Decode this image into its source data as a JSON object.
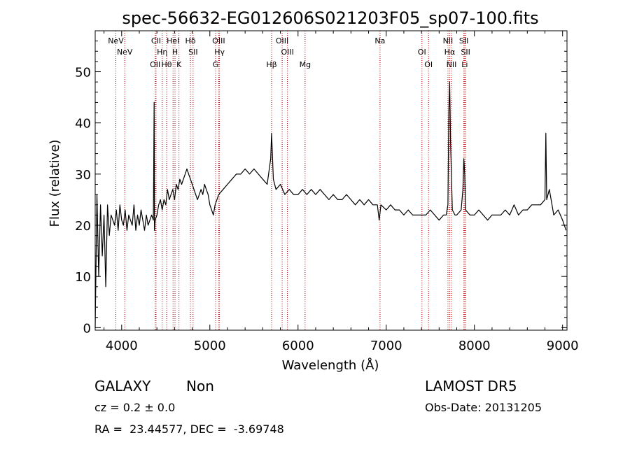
{
  "chart_data": {
    "type": "line",
    "title": "spec-56632-EG012606S021203F05_sp07-100.fits",
    "xlabel": "Wavelength (Å)",
    "ylabel": "Flux (relative)",
    "xlim": [
      3700,
      9050
    ],
    "ylim": [
      -0.5,
      58
    ],
    "xticks": [
      4000,
      5000,
      6000,
      7000,
      8000,
      9000
    ],
    "yticks": [
      0,
      10,
      20,
      30,
      40,
      50
    ],
    "grid": false,
    "series": [
      {
        "x": [
          3700,
          3720,
          3740,
          3760,
          3780,
          3800,
          3820,
          3840,
          3860,
          3880,
          3900,
          3920,
          3940,
          3960,
          3980,
          4000,
          4020,
          4040,
          4060,
          4080,
          4100,
          4120,
          4140,
          4160,
          4180,
          4200,
          4220,
          4240,
          4260,
          4280,
          4300,
          4320,
          4340,
          4360,
          4368,
          4372,
          4380,
          4400,
          4420,
          4440,
          4460,
          4480,
          4500,
          4520,
          4540,
          4560,
          4580,
          4600,
          4620,
          4640,
          4660,
          4680,
          4700,
          4720,
          4740,
          4760,
          4780,
          4800,
          4820,
          4840,
          4860,
          4880,
          4900,
          4920,
          4940,
          4960,
          4980,
          5000,
          5020,
          5040,
          5060,
          5080,
          5100,
          5150,
          5200,
          5250,
          5300,
          5350,
          5400,
          5450,
          5500,
          5550,
          5600,
          5650,
          5690,
          5700,
          5720,
          5750,
          5800,
          5850,
          5900,
          5950,
          6000,
          6050,
          6100,
          6150,
          6200,
          6250,
          6300,
          6350,
          6400,
          6450,
          6500,
          6550,
          6600,
          6650,
          6700,
          6750,
          6800,
          6850,
          6900,
          6920,
          6940,
          7000,
          7050,
          7100,
          7150,
          7200,
          7250,
          7300,
          7350,
          7400,
          7450,
          7500,
          7550,
          7600,
          7650,
          7680,
          7700,
          7710,
          7720,
          7730,
          7750,
          7780,
          7800,
          7850,
          7870,
          7880,
          7890,
          7900,
          7950,
          8000,
          8050,
          8100,
          8150,
          8200,
          8250,
          8300,
          8350,
          8400,
          8450,
          8500,
          8550,
          8600,
          8650,
          8700,
          8750,
          8800,
          8810,
          8820,
          8850,
          8900,
          8950,
          9000,
          9020,
          9040
        ],
        "y": [
          0,
          26,
          10,
          24,
          14,
          22,
          8,
          24,
          18,
          22,
          21,
          20,
          23,
          19,
          24,
          21,
          20,
          23,
          19,
          22,
          21,
          20,
          24,
          19,
          22,
          20,
          23,
          21,
          19,
          22,
          20,
          21,
          22,
          21,
          44,
          19,
          21,
          22,
          24,
          25,
          23,
          25,
          24,
          27,
          25,
          26,
          27,
          25,
          28,
          27,
          29,
          28,
          29,
          30,
          31,
          30,
          29,
          28,
          27,
          26,
          25,
          26,
          27,
          26,
          28,
          27,
          26,
          24,
          23,
          22,
          24,
          25,
          26,
          27,
          28,
          29,
          30,
          30,
          31,
          30,
          31,
          30,
          29,
          28,
          33,
          38,
          29,
          27,
          28,
          26,
          27,
          26,
          26,
          27,
          26,
          27,
          26,
          27,
          26,
          25,
          26,
          25,
          25,
          26,
          25,
          24,
          25,
          24,
          25,
          24,
          24,
          21,
          24,
          23,
          24,
          23,
          23,
          22,
          23,
          22,
          22,
          22,
          22,
          23,
          22,
          21,
          22,
          22,
          24,
          42,
          48,
          36,
          23,
          22,
          22,
          23,
          27,
          33,
          30,
          23,
          22,
          22,
          23,
          22,
          21,
          22,
          22,
          22,
          23,
          22,
          24,
          22,
          23,
          23,
          24,
          24,
          24,
          25,
          38,
          25,
          27,
          22,
          23,
          21,
          20,
          19
        ]
      }
    ],
    "line_names": [
      "NeV",
      "NeV",
      "OII",
      "CII",
      "Hη",
      "Hθ",
      "HeI",
      "H",
      "K",
      "Hδ",
      "SII",
      "G",
      "OIII",
      "Hγ",
      "Hβ",
      "OIII",
      "OIII",
      "Mg",
      "Na",
      "OI",
      "OI",
      "NII",
      "Hα",
      "NII",
      "SII",
      "SII",
      "Li"
    ],
    "line_positions": [
      3934,
      4035,
      4380,
      4390,
      4460,
      4510,
      4583,
      4605,
      4650,
      4780,
      4810,
      5065,
      5100,
      5110,
      5700,
      5820,
      5880,
      6080,
      6930,
      7405,
      7480,
      7700,
      7720,
      7740,
      7880,
      7900,
      7890
    ]
  },
  "info": {
    "class": "GALAXY",
    "subclass": "Non",
    "cz": "cz = 0.2 ± 0.0",
    "coords": "RA =  23.44577, DEC =  -3.69748",
    "survey": "LAMOST DR5",
    "obsdate": "Obs-Date: 20131205"
  }
}
